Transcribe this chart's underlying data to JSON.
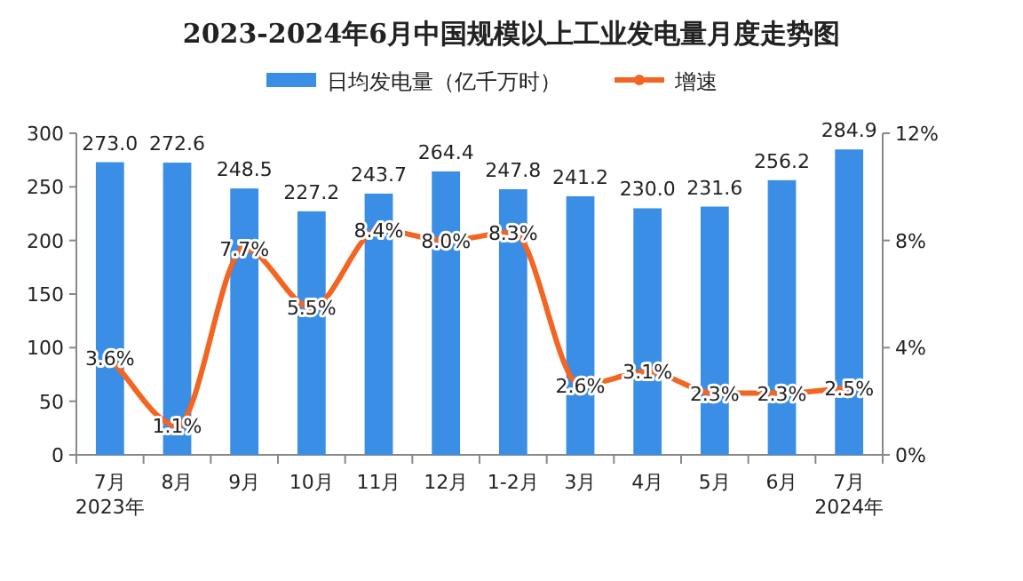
{
  "chart_data": {
    "type": "bar",
    "title": "2023-2024年6月中国规模以上工业发电量月度走势图",
    "categories": [
      "7月\n2023年",
      "8月",
      "9月",
      "10月",
      "11月",
      "12月",
      "1-2月",
      "3月",
      "4月",
      "5月",
      "6月",
      "7月\n2024年"
    ],
    "series": [
      {
        "name": "日均发电量（亿千万时）",
        "color": "#3a8ee6",
        "values": [
          273.0,
          272.6,
          248.5,
          227.2,
          243.7,
          264.4,
          247.8,
          241.2,
          230.0,
          231.6,
          256.2,
          284.9
        ],
        "value_labels": [
          "273.0",
          "272.6",
          "248.5",
          "227.2",
          "243.7",
          "264.4",
          "247.8",
          "241.2",
          "230.0",
          "231.6",
          "256.2",
          "284.9"
        ]
      },
      {
        "name": "增速",
        "type": "line",
        "axis": "y2",
        "color": "#f26522",
        "marker": "circle",
        "values": [
          3.6,
          1.1,
          7.7,
          5.5,
          8.4,
          8.0,
          8.3,
          2.6,
          3.1,
          2.3,
          2.3,
          2.5
        ],
        "value_labels": [
          "3.6%",
          "1.1%",
          "7.7%",
          "5.5%",
          "8.4%",
          "8.0%",
          "8.3%",
          "2.6%",
          "3.1%",
          "2.3%",
          "2.3%",
          "2.5%"
        ]
      }
    ],
    "ylim": [
      0,
      300
    ],
    "yticks": [
      0,
      50,
      100,
      150,
      200,
      250,
      300
    ],
    "y2lim": [
      0,
      12
    ],
    "y2ticks": [
      {
        "value": 0,
        "label": "0%"
      },
      {
        "value": 4,
        "label": "4%"
      },
      {
        "value": 8,
        "label": "8%"
      },
      {
        "value": 12,
        "label": "12%"
      }
    ],
    "legend": "top",
    "grid": false
  }
}
